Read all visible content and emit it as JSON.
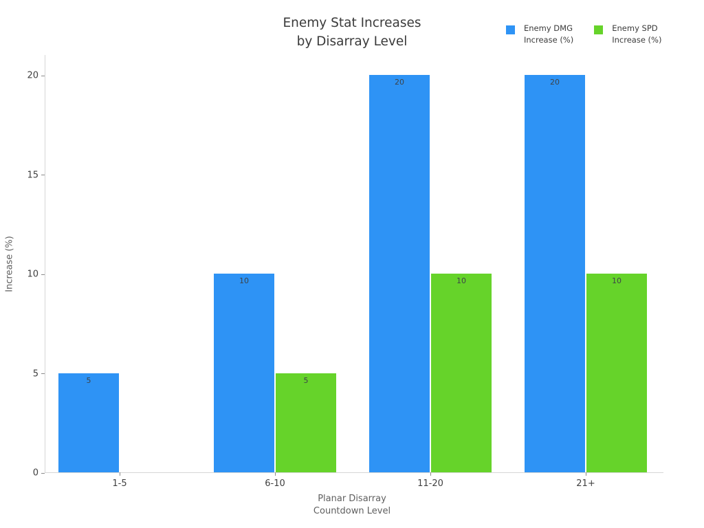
{
  "title": {
    "line1": "Enemy Stat Increases",
    "line2": "by Disarray Level"
  },
  "legend": {
    "items": [
      {
        "label_line1": "Enemy DMG",
        "label_line2": "Increase (%)",
        "color": "#2e93f5"
      },
      {
        "label_line1": "Enemy SPD",
        "label_line2": "Increase (%)",
        "color": "#66d32a"
      }
    ]
  },
  "y_axis": {
    "label": "Increase (%)",
    "ticks": [
      0,
      5,
      10,
      15,
      20
    ]
  },
  "x_axis": {
    "label_line1": "Planar Disarray",
    "label_line2": "Countdown Level"
  },
  "chart_data": {
    "type": "bar",
    "title": "Enemy Stat Increases by Disarray Level",
    "categories": [
      "1-5",
      "6-10",
      "11-20",
      "21+"
    ],
    "series": [
      {
        "name": "Enemy DMG Increase (%)",
        "color": "#2e93f5",
        "values": [
          5,
          10,
          20,
          20
        ]
      },
      {
        "name": "Enemy SPD Increase (%)",
        "color": "#66d32a",
        "values": [
          0,
          5,
          10,
          10
        ]
      }
    ],
    "xlabel": "Planar Disarray Countdown Level",
    "ylabel": "Increase (%)",
    "ylim": [
      0,
      21
    ],
    "grid": false,
    "legend_position": "top-right",
    "bar_value_labels": true
  }
}
